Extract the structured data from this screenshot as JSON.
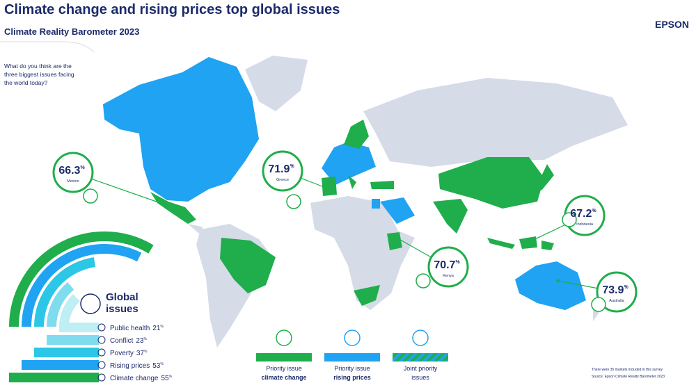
{
  "header": {
    "title": "Climate change and rising prices top global issues",
    "subtitle": "Climate Reality Barometer 2023",
    "brand": "EPSON"
  },
  "question": [
    "What do you think are the",
    "three biggest issues facing",
    "the world today?"
  ],
  "callouts": [
    {
      "value": 66.3,
      "unit": "%",
      "country": "Mexico"
    },
    {
      "value": 71.9,
      "unit": "%",
      "country": "Greece"
    },
    {
      "value": 70.7,
      "unit": "%",
      "country": "Kenya"
    },
    {
      "value": 67.2,
      "unit": "%",
      "country": "Indonesia"
    },
    {
      "value": 73.9,
      "unit": "%",
      "country": "Australia"
    }
  ],
  "global_issues": {
    "title": [
      "Global",
      "issues"
    ],
    "items": [
      {
        "name": "Public health",
        "value": 21,
        "unit": "%",
        "color": "#bfeef5"
      },
      {
        "name": "Conflict",
        "value": 23,
        "unit": "%",
        "color": "#7fdcee"
      },
      {
        "name": "Poverty",
        "value": 37,
        "unit": "%",
        "color": "#2cc6e6"
      },
      {
        "name": "Rising prices",
        "value": 53,
        "unit": "%",
        "color": "#1fa3f2"
      },
      {
        "name": "Climate change",
        "value": 55,
        "unit": "%",
        "color": "#1fae4b"
      }
    ]
  },
  "legend": [
    {
      "lines": [
        "Priority issue",
        "climate change"
      ],
      "color": "#1fae4b"
    },
    {
      "lines": [
        "Priority issue",
        "rising prices"
      ],
      "color": "#1fa3f2"
    },
    {
      "lines": [
        "Joint priority",
        "issues"
      ],
      "color": "striped"
    }
  ],
  "footnotes": [
    "There were 35 markets included in this survey",
    "Source: Epson Climate Reality Barometer 2023"
  ]
}
